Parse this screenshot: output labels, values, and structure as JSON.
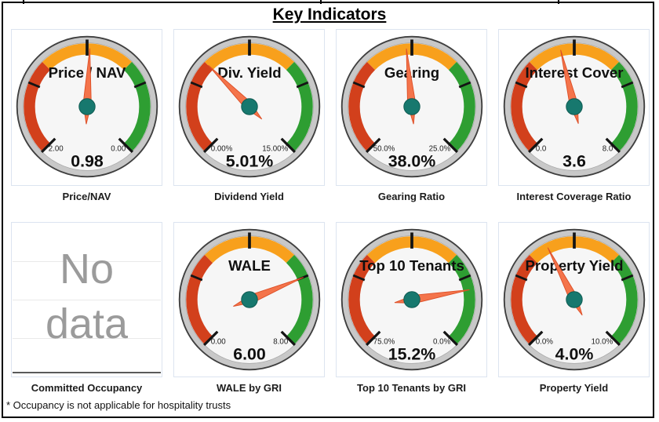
{
  "title": "Key Indicators",
  "footnote": "* Occupancy is not applicable for hospitality trusts",
  "colors": {
    "red": "#D2401C",
    "orange": "#F8A01C",
    "green": "#2E9E32",
    "rim": "#C8C8C8",
    "rim_edge": "#3F3F3F",
    "face": "#F6F6F6",
    "hub": "#17786E",
    "hub_edge": "#0E5A51",
    "needle": "#F4744B",
    "needle_edge": "#DD4F27",
    "panel_border": "#DCE4F0",
    "no_data_text": "#9B9B9B"
  },
  "chart_data": [
    {
      "type": "gauge",
      "title": "Price / NAV",
      "caption": "Price/NAV",
      "min": 2.0,
      "max": 0.0,
      "min_label": "2.00",
      "max_label": "0.00",
      "value": 0.98,
      "value_label": "0.98",
      "bands": [
        "red",
        "orange",
        "green"
      ]
    },
    {
      "type": "gauge",
      "title": "Div. Yield",
      "caption": "Dividend Yield",
      "min": 0.0,
      "max": 15.0,
      "min_label": "0.00%",
      "max_label": "15.00%",
      "value": 5.01,
      "value_label": "5.01%",
      "bands": [
        "red",
        "orange",
        "green"
      ]
    },
    {
      "type": "gauge",
      "title": "Gearing",
      "caption": "Gearing Ratio",
      "min": 50.0,
      "max": 25.0,
      "min_label": "50.0%",
      "max_label": "25.0%",
      "value": 38.0,
      "value_label": "38.0%",
      "bands": [
        "red",
        "orange",
        "green"
      ]
    },
    {
      "type": "gauge",
      "title": "Interest Cover",
      "caption": "Interest Coverage Ratio",
      "min": 0.0,
      "max": 8.0,
      "min_label": "0.0",
      "max_label": "8.0",
      "value": 3.6,
      "value_label": "3.6",
      "bands": [
        "red",
        "orange",
        "green"
      ]
    },
    {
      "type": "empty",
      "caption": "Committed Occupancy",
      "no_data_lines": [
        "No",
        "data"
      ]
    },
    {
      "type": "gauge",
      "title": "WALE",
      "caption": "WALE by GRI",
      "min": 0.0,
      "max": 8.0,
      "min_label": "0.00",
      "max_label": "8.00",
      "value": 6.0,
      "value_label": "6.00",
      "bands": [
        "red",
        "orange",
        "green"
      ]
    },
    {
      "type": "gauge",
      "title": "Top 10 Tenants",
      "caption": "Top 10 Tenants by GRI",
      "min": 75.0,
      "max": 0.0,
      "min_label": "75.0%",
      "max_label": "0.0%",
      "value": 15.2,
      "value_label": "15.2%",
      "bands": [
        "red",
        "orange",
        "green"
      ]
    },
    {
      "type": "gauge",
      "title": "Property Yield",
      "caption": "Property Yield",
      "min": 0.0,
      "max": 10.0,
      "min_label": "0.0%",
      "max_label": "10.0%",
      "value": 4.0,
      "value_label": "4.0%",
      "bands": [
        "red",
        "orange",
        "green"
      ]
    }
  ]
}
